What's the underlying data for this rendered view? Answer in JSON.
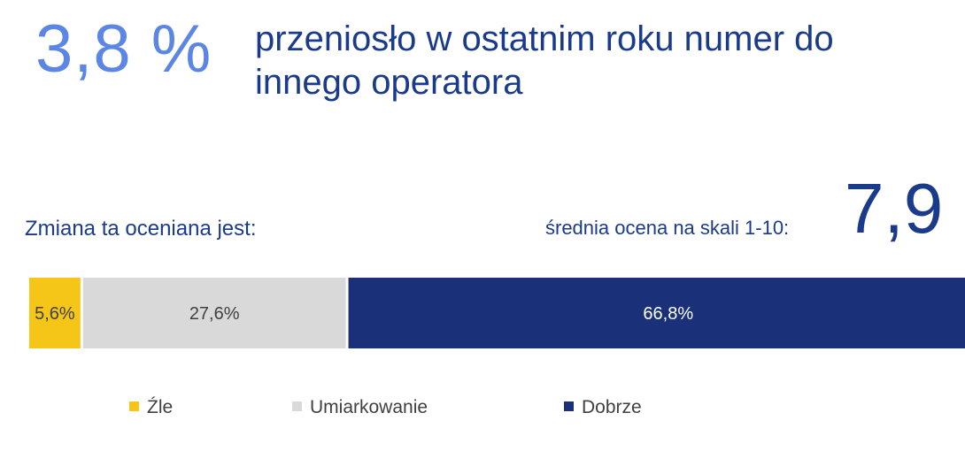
{
  "header": {
    "stat_value": "3,8 %",
    "headline": "przeniosło w ostatnim roku numer do innego operatora"
  },
  "rating": {
    "question": "Zmiana ta oceniana jest:",
    "avg_label": "średnia ocena na skali 1-10:",
    "avg_value": "7,9"
  },
  "chart_data": {
    "type": "bar",
    "orientation": "horizontal-stacked",
    "xlim": [
      0,
      100
    ],
    "series": [
      {
        "name": "Źle",
        "value": 5.6,
        "label": "5,6%",
        "color": "#f5c518",
        "label_color": "#404040"
      },
      {
        "name": "Umiarkowanie",
        "value": 27.6,
        "label": "27,6%",
        "color": "#d9d9d9",
        "label_color": "#404040"
      },
      {
        "name": "Dobrze",
        "value": 66.8,
        "label": "66,8%",
        "color": "#1a317a",
        "label_color": "#ffffff"
      }
    ],
    "legend_position": "bottom"
  }
}
